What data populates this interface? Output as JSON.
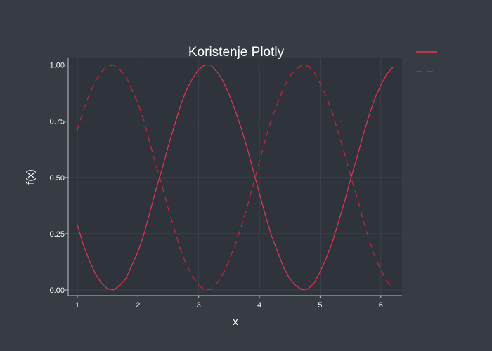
{
  "chart_data": {
    "type": "line",
    "title": "Koristenje Plotly",
    "xlabel": "x",
    "ylabel": "f(x)",
    "xlim": [
      0.85,
      6.35
    ],
    "ylim": [
      -0.025,
      1.03
    ],
    "xticks": [
      "1",
      "2",
      "3",
      "4",
      "5",
      "6"
    ],
    "yticks": [
      "0.00",
      "0.25",
      "0.50",
      "0.75",
      "1.00"
    ],
    "grid": true,
    "legend": "top-right",
    "x": [
      1.0,
      1.1,
      1.2,
      1.3,
      1.4,
      1.5,
      1.6,
      1.7,
      1.8,
      1.9,
      2.0,
      2.1,
      2.2,
      2.3,
      2.4,
      2.5,
      2.6,
      2.7,
      2.8,
      2.9,
      3.0,
      3.1,
      3.2,
      3.3,
      3.4,
      3.5,
      3.6,
      3.7,
      3.8,
      3.9,
      4.0,
      4.1,
      4.2,
      4.3,
      4.4,
      4.5,
      4.6,
      4.7,
      4.8,
      4.9,
      5.0,
      5.1,
      5.2,
      5.3,
      5.4,
      5.5,
      5.6,
      5.7,
      5.8,
      5.9,
      6.0,
      6.1,
      6.2
    ],
    "series": [
      {
        "name": "",
        "color": "#e8364f",
        "dash": "solid",
        "values": [
          0.29,
          0.2,
          0.13,
          0.07,
          0.03,
          0.005,
          0.001,
          0.02,
          0.05,
          0.11,
          0.17,
          0.25,
          0.35,
          0.45,
          0.54,
          0.64,
          0.73,
          0.82,
          0.89,
          0.94,
          0.98,
          1.0,
          1.0,
          0.97,
          0.93,
          0.87,
          0.8,
          0.72,
          0.63,
          0.53,
          0.43,
          0.33,
          0.24,
          0.17,
          0.1,
          0.05,
          0.02,
          0.001,
          0.005,
          0.03,
          0.08,
          0.14,
          0.21,
          0.3,
          0.39,
          0.49,
          0.58,
          0.68,
          0.77,
          0.85,
          0.91,
          0.96,
          0.99
        ]
      },
      {
        "name": "",
        "color": "#c8283a",
        "dash": "dash",
        "values": [
          0.71,
          0.8,
          0.87,
          0.93,
          0.97,
          0.995,
          0.999,
          0.98,
          0.95,
          0.89,
          0.83,
          0.75,
          0.65,
          0.55,
          0.46,
          0.36,
          0.27,
          0.18,
          0.11,
          0.06,
          0.02,
          0.002,
          0.003,
          0.03,
          0.07,
          0.13,
          0.2,
          0.28,
          0.37,
          0.47,
          0.57,
          0.67,
          0.76,
          0.83,
          0.9,
          0.95,
          0.98,
          0.999,
          0.995,
          0.97,
          0.92,
          0.86,
          0.79,
          0.7,
          0.61,
          0.51,
          0.42,
          0.32,
          0.23,
          0.15,
          0.09,
          0.04,
          0.01
        ]
      }
    ]
  }
}
